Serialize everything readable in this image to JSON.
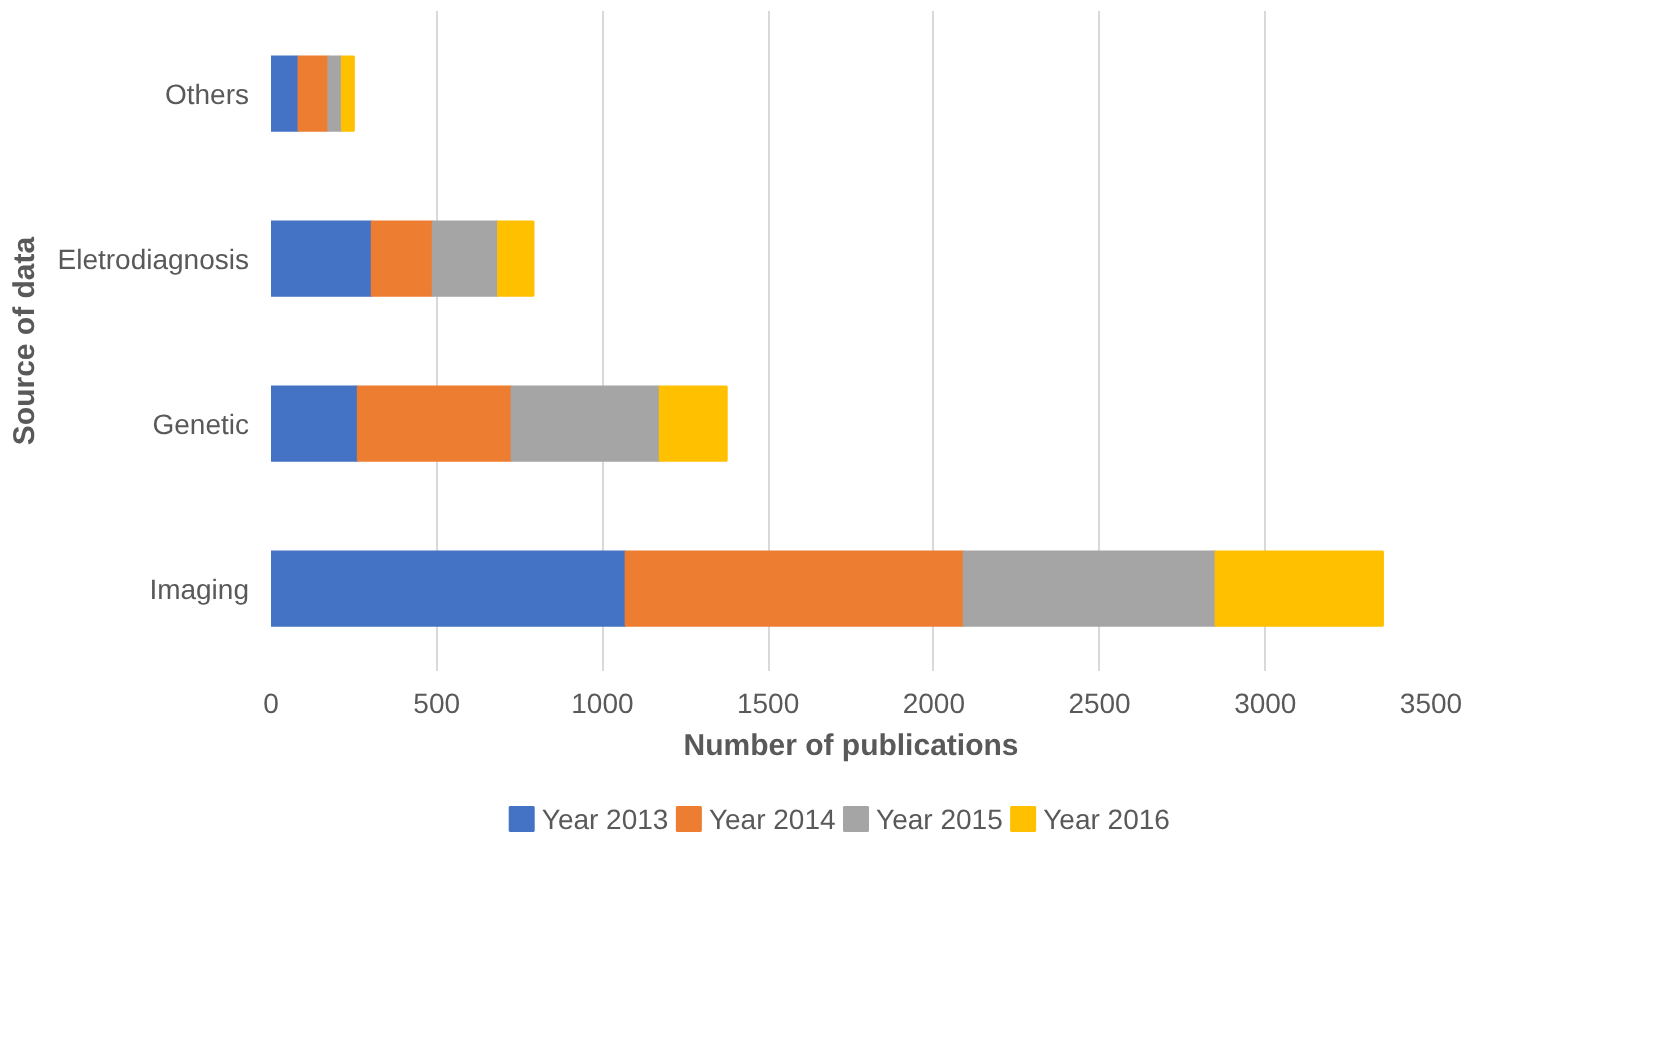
{
  "chart_data": {
    "type": "bar",
    "orientation": "horizontal",
    "stacked": true,
    "categories": [
      "Others",
      "Eletrodiagnosis",
      "Genetic",
      "Imaging"
    ],
    "xlabel": "Number of publications",
    "ylabel": "Source of data",
    "xlim": [
      0,
      3500
    ],
    "xticks": [
      0,
      500,
      1000,
      1500,
      2000,
      2500,
      3000,
      3500
    ],
    "grid": "x",
    "legend": "bottom",
    "series": [
      {
        "name": "Year 2013",
        "color": "#4472c4",
        "values": [
          83,
          304,
          262,
          1070
        ]
      },
      {
        "name": "Year 2014",
        "color": "#ed7d31",
        "values": [
          90,
          184,
          464,
          1020
        ]
      },
      {
        "name": "Year 2015",
        "color": "#a5a5a5",
        "values": [
          41,
          197,
          447,
          760
        ]
      },
      {
        "name": "Year 2016",
        "color": "#ffc000",
        "values": [
          36,
          107,
          202,
          505
        ]
      }
    ]
  }
}
